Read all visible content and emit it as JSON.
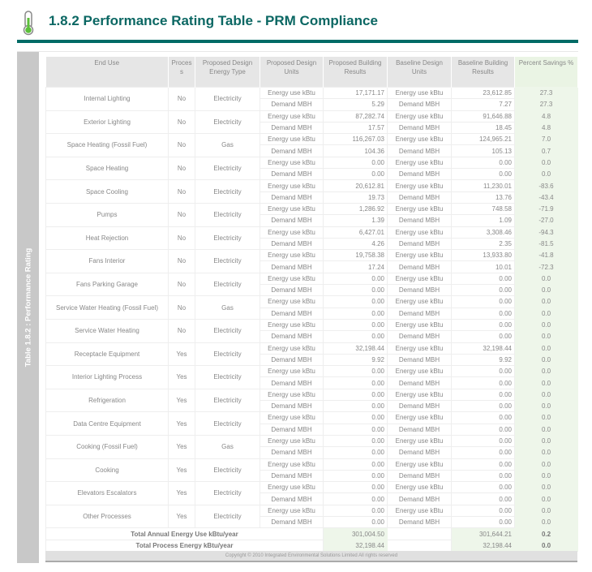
{
  "header": {
    "title": "1.8.2 Performance Rating Table - PRM Compliance",
    "icon": "thermometer-icon",
    "accent": "#006b66"
  },
  "side_label": "Table 1.8.2 : Performance Rating",
  "columns": [
    "End Use",
    "Process",
    "Proposed Design Energy Type",
    "Proposed Design Units",
    "Proposed Building Results",
    "Baseline Design Units",
    "Baseline Building Results",
    "Percent Savings %"
  ],
  "unit_labels": {
    "energy": "Energy use kBtu",
    "demand": "Demand MBH"
  },
  "rows": [
    {
      "end_use": "Internal Lighting",
      "process": "No",
      "type": "Electricity",
      "prop_energy": "17,171.17",
      "prop_demand": "5.29",
      "base_energy": "23,612.85",
      "base_demand": "7.27",
      "pct_energy": "27.3",
      "pct_demand": "27.3"
    },
    {
      "end_use": "Exterior Lighting",
      "process": "No",
      "type": "Electricity",
      "prop_energy": "87,282.74",
      "prop_demand": "17.57",
      "base_energy": "91,646.88",
      "base_demand": "18.45",
      "pct_energy": "4.8",
      "pct_demand": "4.8"
    },
    {
      "end_use": "Space Heating (Fossil Fuel)",
      "process": "No",
      "type": "Gas",
      "prop_energy": "116,267.03",
      "prop_demand": "104.36",
      "base_energy": "124,965.21",
      "base_demand": "105.13",
      "pct_energy": "7.0",
      "pct_demand": "0.7"
    },
    {
      "end_use": "Space Heating",
      "process": "No",
      "type": "Electricity",
      "prop_energy": "0.00",
      "prop_demand": "0.00",
      "base_energy": "0.00",
      "base_demand": "0.00",
      "pct_energy": "0.0",
      "pct_demand": "0.0"
    },
    {
      "end_use": "Space Cooling",
      "process": "No",
      "type": "Electricity",
      "prop_energy": "20,612.81",
      "prop_demand": "19.73",
      "base_energy": "11,230.01",
      "base_demand": "13.76",
      "pct_energy": "-83.6",
      "pct_demand": "-43.4"
    },
    {
      "end_use": "Pumps",
      "process": "No",
      "type": "Electricity",
      "prop_energy": "1,286.92",
      "prop_demand": "1.39",
      "base_energy": "748.58",
      "base_demand": "1.09",
      "pct_energy": "-71.9",
      "pct_demand": "-27.0"
    },
    {
      "end_use": "Heat Rejection",
      "process": "No",
      "type": "Electricity",
      "prop_energy": "6,427.01",
      "prop_demand": "4.26",
      "base_energy": "3,308.46",
      "base_demand": "2.35",
      "pct_energy": "-94.3",
      "pct_demand": "-81.5"
    },
    {
      "end_use": "Fans Interior",
      "process": "No",
      "type": "Electricity",
      "prop_energy": "19,758.38",
      "prop_demand": "17.24",
      "base_energy": "13,933.80",
      "base_demand": "10.01",
      "pct_energy": "-41.8",
      "pct_demand": "-72.3"
    },
    {
      "end_use": "Fans Parking Garage",
      "process": "No",
      "type": "Electricity",
      "prop_energy": "0.00",
      "prop_demand": "0.00",
      "base_energy": "0.00",
      "base_demand": "0.00",
      "pct_energy": "0.0",
      "pct_demand": "0.0"
    },
    {
      "end_use": "Service Water Heating (Fossil Fuel)",
      "process": "No",
      "type": "Gas",
      "prop_energy": "0.00",
      "prop_demand": "0.00",
      "base_energy": "0.00",
      "base_demand": "0.00",
      "pct_energy": "0.0",
      "pct_demand": "0.0"
    },
    {
      "end_use": "Service Water Heating",
      "process": "No",
      "type": "Electricity",
      "prop_energy": "0.00",
      "prop_demand": "0.00",
      "base_energy": "0.00",
      "base_demand": "0.00",
      "pct_energy": "0.0",
      "pct_demand": "0.0"
    },
    {
      "end_use": "Receptacle Equipment",
      "process": "Yes",
      "type": "Electricity",
      "prop_energy": "32,198.44",
      "prop_demand": "9.92",
      "base_energy": "32,198.44",
      "base_demand": "9.92",
      "pct_energy": "0.0",
      "pct_demand": "0.0"
    },
    {
      "end_use": "Interior Lighting Process",
      "process": "Yes",
      "type": "Electricity",
      "prop_energy": "0.00",
      "prop_demand": "0.00",
      "base_energy": "0.00",
      "base_demand": "0.00",
      "pct_energy": "0.0",
      "pct_demand": "0.0"
    },
    {
      "end_use": "Refrigeration",
      "process": "Yes",
      "type": "Electricity",
      "prop_energy": "0.00",
      "prop_demand": "0.00",
      "base_energy": "0.00",
      "base_demand": "0.00",
      "pct_energy": "0.0",
      "pct_demand": "0.0"
    },
    {
      "end_use": "Data Centre Equipment",
      "process": "Yes",
      "type": "Electricity",
      "prop_energy": "0.00",
      "prop_demand": "0.00",
      "base_energy": "0.00",
      "base_demand": "0.00",
      "pct_energy": "0.0",
      "pct_demand": "0.0"
    },
    {
      "end_use": "Cooking (Fossil Fuel)",
      "process": "Yes",
      "type": "Gas",
      "prop_energy": "0.00",
      "prop_demand": "0.00",
      "base_energy": "0.00",
      "base_demand": "0.00",
      "pct_energy": "0.0",
      "pct_demand": "0.0"
    },
    {
      "end_use": "Cooking",
      "process": "Yes",
      "type": "Electricity",
      "prop_energy": "0.00",
      "prop_demand": "0.00",
      "base_energy": "0.00",
      "base_demand": "0.00",
      "pct_energy": "0.0",
      "pct_demand": "0.0"
    },
    {
      "end_use": "Elevators Escalators",
      "process": "Yes",
      "type": "Electricity",
      "prop_energy": "0.00",
      "prop_demand": "0.00",
      "base_energy": "0.00",
      "base_demand": "0.00",
      "pct_energy": "0.0",
      "pct_demand": "0.0"
    },
    {
      "end_use": "Other Processes",
      "process": "Yes",
      "type": "Electricity",
      "prop_energy": "0.00",
      "prop_demand": "0.00",
      "base_energy": "0.00",
      "base_demand": "0.00",
      "pct_energy": "0.0",
      "pct_demand": "0.0"
    }
  ],
  "totals": [
    {
      "label": "Total Annual Energy Use kBtu/year",
      "proposed": "301,004.50",
      "baseline": "301,644.21",
      "pct": "0.2"
    },
    {
      "label": "Total Process Energy kBtu/year",
      "proposed": "32,198.44",
      "baseline": "32,198.44",
      "pct": "0.0"
    }
  ],
  "footer": "Copyright © 2010 Integrated Environmental Solutions Limited All rights reserved"
}
